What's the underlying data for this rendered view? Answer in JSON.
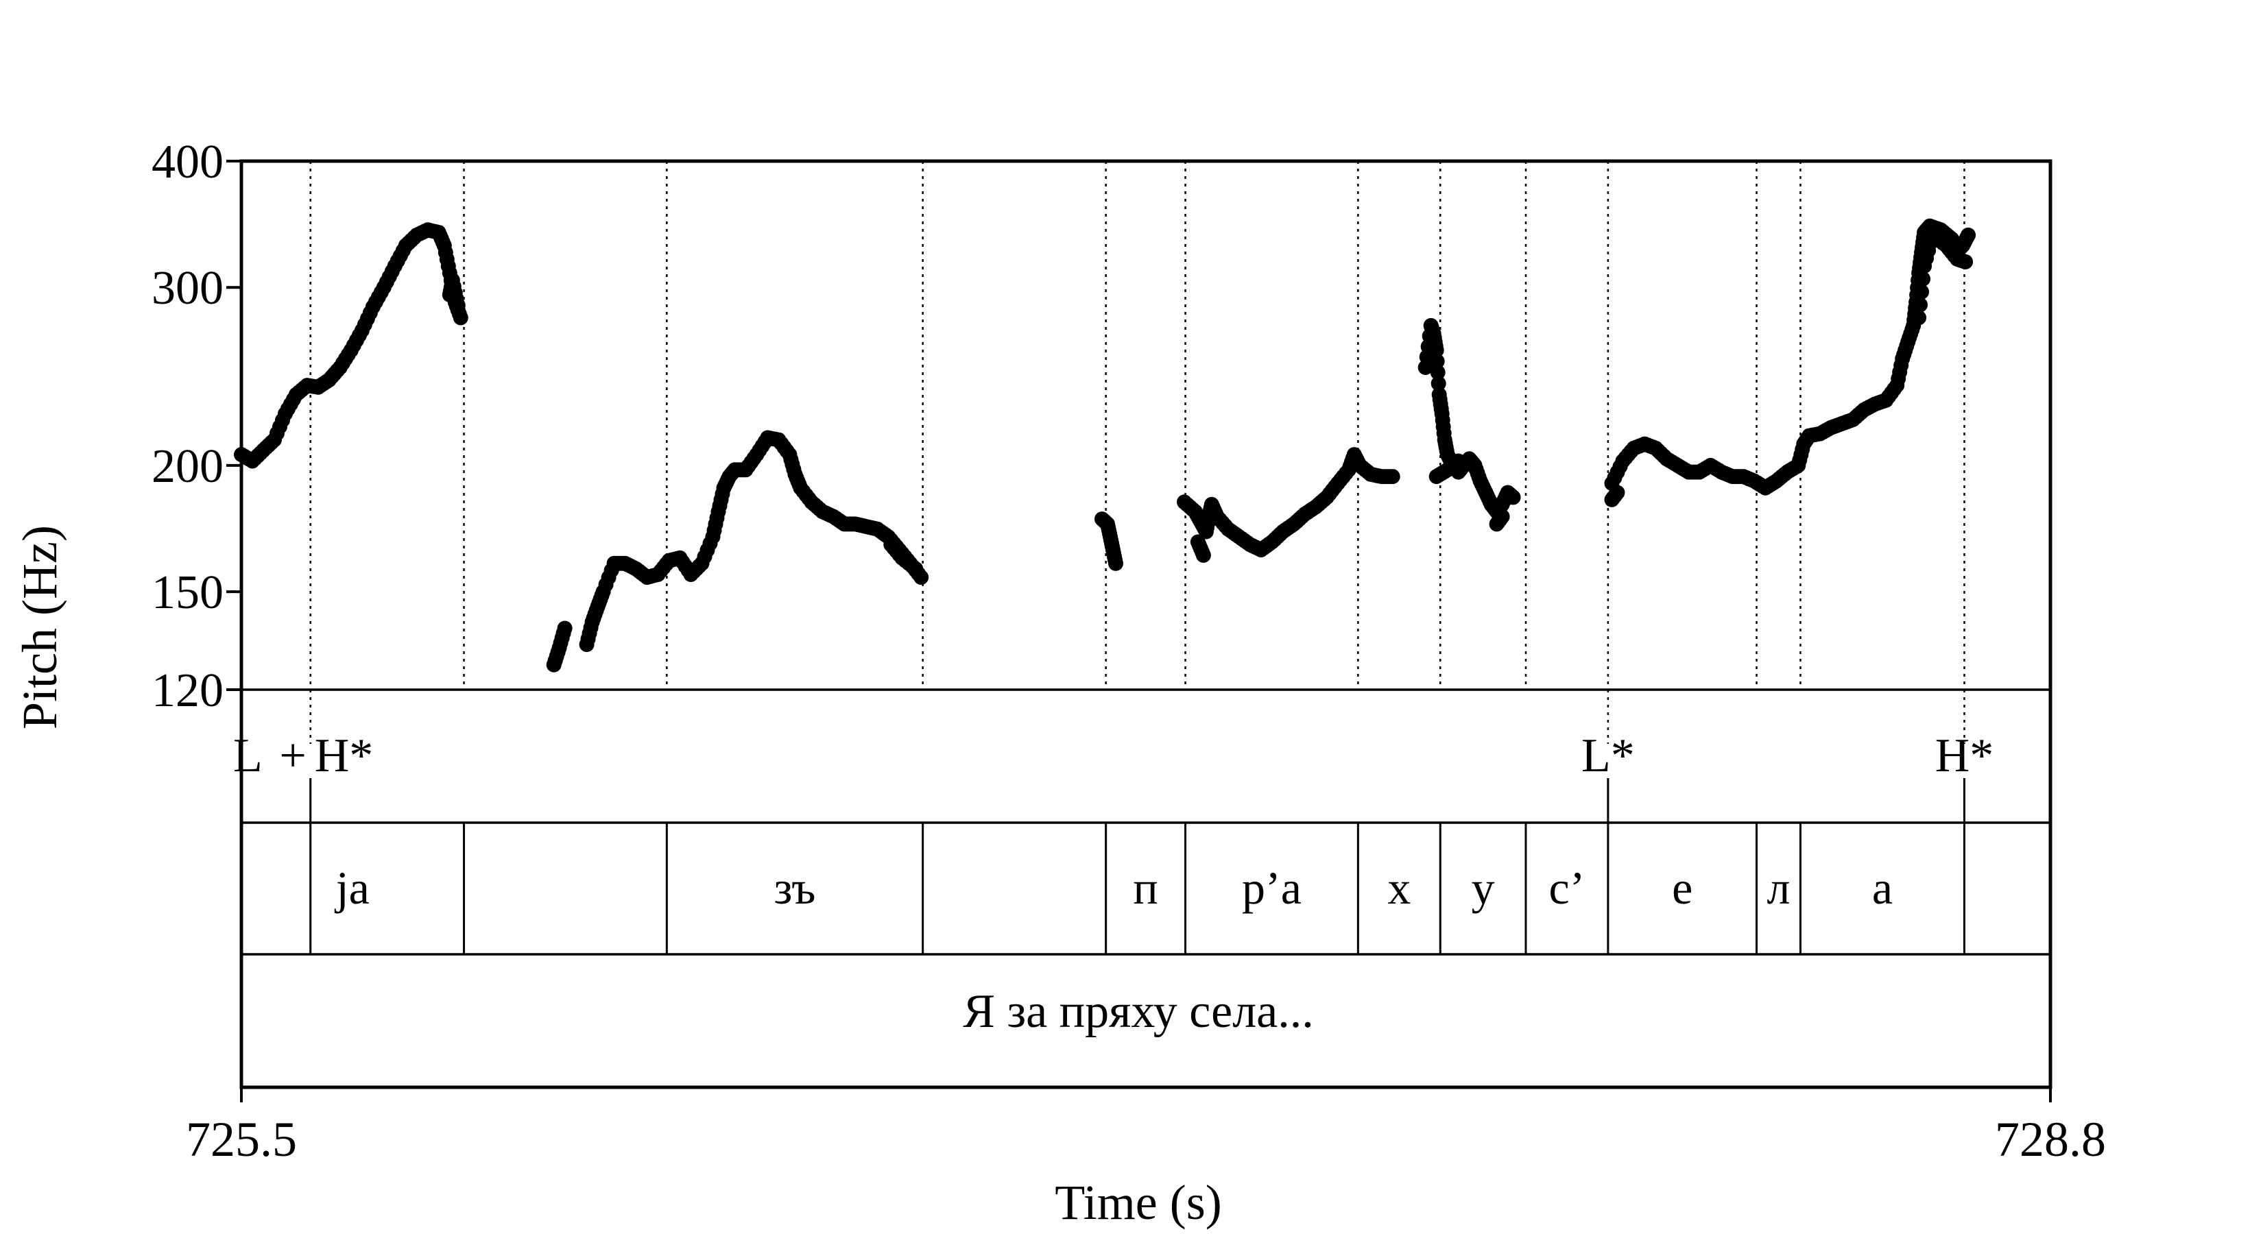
{
  "chart_data": {
    "type": "scatter",
    "xlabel": "Time (s)",
    "ylabel": "Pitch (Hz)",
    "xlim": [
      725.5,
      728.8
    ],
    "ylim": [
      120,
      400
    ],
    "y_scale": "log",
    "x_tick_labels": [
      "725.5",
      "728.8"
    ],
    "y_ticks": [
      {
        "value": 400,
        "label": "400"
      },
      {
        "value": 300,
        "label": "300"
      },
      {
        "value": 200,
        "label": "200"
      },
      {
        "value": 150,
        "label": "150"
      },
      {
        "value": 120,
        "label": "120"
      }
    ],
    "boundaries": [
      725.626,
      725.906,
      726.276,
      726.743,
      727.077,
      727.222,
      727.537,
      727.687,
      727.843,
      727.993,
      728.264,
      728.344,
      728.643
    ],
    "tone_labels": [
      {
        "t": 725.5,
        "text": "L"
      },
      {
        "t": 725.594,
        "text": "+"
      },
      {
        "t": 725.626,
        "text": "H*"
      },
      {
        "t": 727.993,
        "text": "L*"
      },
      {
        "t": 728.643,
        "text": "H*"
      }
    ],
    "segments": [
      {
        "start": 725.5,
        "end": 725.906,
        "text": "ja"
      },
      {
        "start": 725.906,
        "end": 726.276,
        "text": ""
      },
      {
        "start": 726.276,
        "end": 726.743,
        "text": "зъ"
      },
      {
        "start": 726.743,
        "end": 727.077,
        "text": ""
      },
      {
        "start": 727.077,
        "end": 727.222,
        "text": "п"
      },
      {
        "start": 727.222,
        "end": 727.537,
        "text": "р’а"
      },
      {
        "start": 727.537,
        "end": 727.687,
        "text": "х"
      },
      {
        "start": 727.687,
        "end": 727.843,
        "text": "у"
      },
      {
        "start": 727.843,
        "end": 727.993,
        "text": "с’"
      },
      {
        "start": 727.993,
        "end": 728.264,
        "text": "е"
      },
      {
        "start": 728.264,
        "end": 728.344,
        "text": "л"
      },
      {
        "start": 728.344,
        "end": 728.643,
        "text": "а"
      },
      {
        "start": 728.643,
        "end": 728.8,
        "text": ""
      }
    ],
    "sentence": "Я за пряху села...",
    "series": [
      {
        "points": [
          [
            725.5,
            205
          ],
          [
            725.52,
            202
          ],
          [
            725.54,
            207
          ],
          [
            725.56,
            212
          ],
          [
            725.58,
            225
          ],
          [
            725.6,
            235
          ],
          [
            725.62,
            240
          ],
          [
            725.64,
            239
          ],
          [
            725.66,
            243
          ],
          [
            725.68,
            250
          ],
          [
            725.7,
            260
          ],
          [
            725.72,
            272
          ],
          [
            725.74,
            287
          ],
          [
            725.76,
            300
          ],
          [
            725.78,
            315
          ],
          [
            725.8,
            330
          ],
          [
            725.82,
            338
          ],
          [
            725.84,
            342
          ],
          [
            725.86,
            340
          ],
          [
            725.87,
            330
          ],
          [
            725.88,
            310
          ],
          [
            725.89,
            290
          ],
          [
            725.9,
            280
          ],
          [
            725.88,
            295
          ],
          [
            725.885,
            305
          ],
          [
            725.895,
            288
          ],
          [
            726.07,
            127
          ],
          [
            726.08,
            132
          ],
          [
            726.09,
            138
          ],
          [
            726.13,
            133
          ],
          [
            726.14,
            140
          ],
          [
            726.15,
            145
          ],
          [
            726.16,
            150
          ],
          [
            726.18,
            160
          ],
          [
            726.2,
            160
          ],
          [
            726.22,
            158
          ],
          [
            726.24,
            155
          ],
          [
            726.26,
            156
          ],
          [
            726.28,
            161
          ],
          [
            726.3,
            162
          ],
          [
            726.32,
            156
          ],
          [
            726.34,
            160
          ],
          [
            726.36,
            170
          ],
          [
            726.37,
            180
          ],
          [
            726.38,
            190
          ],
          [
            726.39,
            195
          ],
          [
            726.4,
            198
          ],
          [
            726.42,
            198
          ],
          [
            726.44,
            205
          ],
          [
            726.46,
            213
          ],
          [
            726.48,
            212
          ],
          [
            726.5,
            205
          ],
          [
            726.51,
            196
          ],
          [
            726.52,
            190
          ],
          [
            726.54,
            184
          ],
          [
            726.56,
            180
          ],
          [
            726.58,
            178
          ],
          [
            726.6,
            175
          ],
          [
            726.62,
            175
          ],
          [
            726.64,
            174
          ],
          [
            726.66,
            173
          ],
          [
            726.68,
            170
          ],
          [
            726.7,
            165
          ],
          [
            726.72,
            160
          ],
          [
            726.74,
            155
          ],
          [
            726.685,
            167
          ],
          [
            726.705,
            162
          ],
          [
            726.73,
            158
          ],
          [
            727.07,
            177
          ],
          [
            727.08,
            175
          ],
          [
            727.085,
            170
          ],
          [
            727.09,
            165
          ],
          [
            727.095,
            160
          ],
          [
            727.22,
            184
          ],
          [
            727.24,
            180
          ],
          [
            727.25,
            176
          ],
          [
            727.26,
            172
          ],
          [
            727.265,
            178
          ],
          [
            727.27,
            183
          ],
          [
            727.28,
            178
          ],
          [
            727.3,
            173
          ],
          [
            727.32,
            170
          ],
          [
            727.34,
            167
          ],
          [
            727.36,
            165
          ],
          [
            727.38,
            168
          ],
          [
            727.4,
            172
          ],
          [
            727.42,
            175
          ],
          [
            727.44,
            179
          ],
          [
            727.46,
            182
          ],
          [
            727.48,
            186
          ],
          [
            727.5,
            192
          ],
          [
            727.52,
            198
          ],
          [
            727.53,
            205
          ],
          [
            727.54,
            200
          ],
          [
            727.56,
            196
          ],
          [
            727.58,
            195
          ],
          [
            727.6,
            195
          ],
          [
            727.245,
            168
          ],
          [
            727.255,
            163
          ],
          [
            727.66,
            250
          ],
          [
            727.67,
            275
          ],
          [
            727.675,
            270
          ],
          [
            727.68,
            260
          ],
          [
            727.685,
            235
          ],
          [
            727.69,
            225
          ],
          [
            727.695,
            212
          ],
          [
            727.7,
            205
          ],
          [
            727.71,
            200
          ],
          [
            727.72,
            197
          ],
          [
            727.73,
            200
          ],
          [
            727.74,
            203
          ],
          [
            727.75,
            200
          ],
          [
            727.76,
            193
          ],
          [
            727.77,
            188
          ],
          [
            727.78,
            183
          ],
          [
            727.79,
            180
          ],
          [
            727.8,
            183
          ],
          [
            727.81,
            188
          ],
          [
            727.82,
            186
          ],
          [
            727.68,
            195
          ],
          [
            727.7,
            198
          ],
          [
            727.72,
            202
          ],
          [
            727.79,
            175
          ],
          [
            727.8,
            178
          ],
          [
            728.0,
            192
          ],
          [
            728.02,
            202
          ],
          [
            728.04,
            208
          ],
          [
            728.06,
            210
          ],
          [
            728.08,
            208
          ],
          [
            728.1,
            203
          ],
          [
            728.12,
            200
          ],
          [
            728.14,
            197
          ],
          [
            728.16,
            197
          ],
          [
            728.18,
            200
          ],
          [
            728.2,
            197
          ],
          [
            728.22,
            195
          ],
          [
            728.24,
            195
          ],
          [
            728.26,
            193
          ],
          [
            728.28,
            190
          ],
          [
            728.3,
            193
          ],
          [
            728.32,
            197
          ],
          [
            728.34,
            200
          ],
          [
            728.35,
            210
          ],
          [
            728.36,
            214
          ],
          [
            728.38,
            215
          ],
          [
            728.4,
            218
          ],
          [
            728.42,
            220
          ],
          [
            728.44,
            222
          ],
          [
            728.46,
            227
          ],
          [
            728.48,
            230
          ],
          [
            728.5,
            232
          ],
          [
            728.52,
            240
          ],
          [
            728.53,
            255
          ],
          [
            728.54,
            265
          ],
          [
            728.55,
            275
          ],
          [
            728.555,
            290
          ],
          [
            728.56,
            310
          ],
          [
            728.565,
            325
          ],
          [
            728.57,
            340
          ],
          [
            728.58,
            345
          ],
          [
            728.6,
            342
          ],
          [
            728.62,
            335
          ],
          [
            728.63,
            326
          ],
          [
            728.64,
            330
          ],
          [
            728.65,
            338
          ],
          [
            728.0,
            185
          ],
          [
            728.01,
            188
          ],
          [
            728.56,
            280
          ],
          [
            728.57,
            315
          ],
          [
            728.585,
            338
          ],
          [
            728.61,
            330
          ],
          [
            728.63,
            320
          ],
          [
            728.645,
            318
          ]
        ]
      }
    ]
  }
}
